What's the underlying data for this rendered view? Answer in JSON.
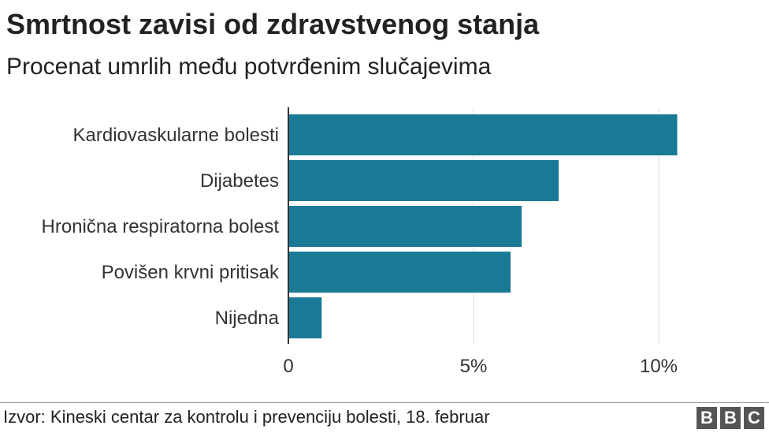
{
  "header": {
    "title": "Smrtnost zavisi od zdravstvenog stanja",
    "subtitle": "Procenat umrlih među potvrđenim slučajevima"
  },
  "footer": {
    "source": "Izvor: Kineski centar za kontrolu i prevenciju bolesti, 18. februar",
    "logo": [
      "B",
      "B",
      "C"
    ]
  },
  "colors": {
    "bar": "#1a7a96",
    "grid": "#dddddd",
    "axis": "#333333"
  },
  "chart_data": {
    "type": "bar",
    "orientation": "horizontal",
    "title": "Smrtnost zavisi od zdravstvenog stanja",
    "subtitle": "Procenat umrlih među potvrđenim slučajevima",
    "categories": [
      "Kardiovaskularne bolesti",
      "Dijabetes",
      "Hronična respiratorna bolest",
      "Povišen krvni pritisak",
      "Nijedna"
    ],
    "values": [
      10.5,
      7.3,
      6.3,
      6.0,
      0.9
    ],
    "xlim": [
      0,
      12.5
    ],
    "xticks": [
      0,
      5,
      10
    ],
    "xtick_labels": [
      "0",
      "5%",
      "10%"
    ],
    "grid": true
  }
}
